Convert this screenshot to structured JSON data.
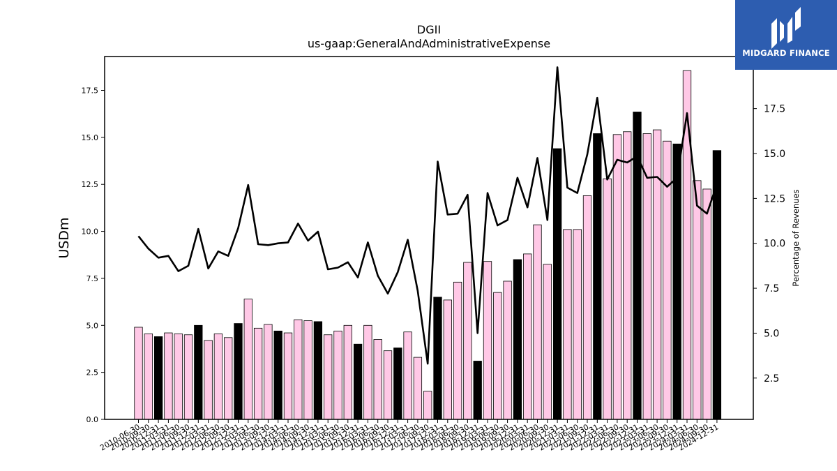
{
  "chart_data": {
    "type": "bar",
    "title": "DGII",
    "subtitle": "us-gaap:GeneralAndAdministrativeExpense",
    "ylabel": "USDm",
    "y2label": "Percentage of Revenues",
    "ylim": [
      0,
      19.3
    ],
    "y2lim": [
      0.2,
      20.4
    ],
    "yticks": [
      "0.0",
      "2.5",
      "5.0",
      "7.5",
      "10.0",
      "12.5",
      "15.0",
      "17.5"
    ],
    "y2ticks": [
      "2.5",
      "5.0",
      "7.5",
      "10.0",
      "12.5",
      "15.0",
      "17.5"
    ],
    "grid": false,
    "categories": [
      "2010-06-30",
      "2010-09-30",
      "2010-12-31",
      "2011-03-31",
      "2011-06-30",
      "2011-09-30",
      "2011-12-31",
      "2012-03-31",
      "2012-06-30",
      "2012-09-30",
      "2012-12-31",
      "2013-03-31",
      "2013-06-30",
      "2013-09-30",
      "2013-12-31",
      "2014-03-31",
      "2014-06-30",
      "2014-09-30",
      "2014-12-31",
      "2015-03-31",
      "2015-06-30",
      "2015-09-30",
      "2015-12-31",
      "2016-03-31",
      "2016-06-30",
      "2016-09-30",
      "2016-12-31",
      "2017-03-31",
      "2017-06-30",
      "2017-09-30",
      "2017-12-31",
      "2018-03-31",
      "2018-06-30",
      "2018-09-30",
      "2018-12-31",
      "2019-03-31",
      "2019-06-30",
      "2019-09-30",
      "2019-12-31",
      "2020-03-31",
      "2020-06-30",
      "2020-09-30",
      "2020-12-31",
      "2021-03-31",
      "2021-06-30",
      "2021-09-30",
      "2021-12-31",
      "2022-03-31",
      "2022-06-30",
      "2022-09-30",
      "2022-12-31",
      "2023-03-31",
      "2023-06-30",
      "2023-09-30",
      "2023-12-31",
      "2024-03-31",
      "2024-06-30",
      "2024-09-30",
      "2024-12-31"
    ],
    "series": [
      {
        "kind": "bar",
        "values": [
          4.9,
          4.55,
          4.4,
          4.6,
          4.55,
          4.5,
          5.0,
          4.2,
          4.55,
          4.35,
          5.1,
          6.4,
          4.85,
          5.05,
          4.7,
          4.6,
          5.3,
          5.25,
          5.2,
          4.5,
          4.7,
          5.0,
          4.0,
          5.0,
          4.25,
          3.65,
          3.8,
          4.65,
          3.3,
          1.5,
          6.5,
          6.35,
          7.3,
          8.35,
          3.1,
          8.4,
          6.75,
          7.35,
          8.5,
          8.8,
          10.35,
          8.25,
          14.4,
          10.1,
          10.1,
          11.9,
          15.2,
          12.8,
          15.15,
          15.3,
          16.35,
          15.2,
          15.4,
          14.8,
          14.65,
          18.55,
          12.7,
          12.25,
          14.3
        ],
        "colors": [
          "#ffc8e6",
          "#ffc8e6",
          "#000000",
          "#ffc8e6",
          "#ffc8e6",
          "#ffc8e6",
          "#000000",
          "#ffc8e6",
          "#ffc8e6",
          "#ffc8e6",
          "#000000",
          "#ffc8e6",
          "#ffc8e6",
          "#ffc8e6",
          "#000000",
          "#ffc8e6",
          "#ffc8e6",
          "#ffc8e6",
          "#000000",
          "#ffc8e6",
          "#ffc8e6",
          "#ffc8e6",
          "#000000",
          "#ffc8e6",
          "#ffc8e6",
          "#ffc8e6",
          "#000000",
          "#ffc8e6",
          "#ffc8e6",
          "#ffc8e6",
          "#000000",
          "#ffc8e6",
          "#ffc8e6",
          "#ffc8e6",
          "#000000",
          "#ffc8e6",
          "#ffc8e6",
          "#ffc8e6",
          "#000000",
          "#ffc8e6",
          "#ffc8e6",
          "#ffc8e6",
          "#000000",
          "#ffc8e6",
          "#ffc8e6",
          "#ffc8e6",
          "#000000",
          "#ffc8e6",
          "#ffc8e6",
          "#ffc8e6",
          "#000000",
          "#ffc8e6",
          "#ffc8e6",
          "#ffc8e6",
          "#000000",
          "#ffc8e6",
          "#ffc8e6",
          "#ffc8e6",
          "#000000"
        ]
      },
      {
        "kind": "line",
        "axis": "right",
        "color": "#000000",
        "values": [
          10.4,
          9.7,
          9.2,
          9.3,
          8.45,
          8.75,
          10.8,
          8.6,
          9.55,
          9.3,
          10.85,
          13.25,
          9.95,
          9.9,
          10.0,
          10.05,
          11.1,
          10.15,
          10.65,
          8.55,
          8.65,
          8.95,
          8.1,
          10.05,
          8.2,
          7.2,
          8.4,
          10.2,
          7.35,
          3.3,
          14.55,
          11.6,
          11.65,
          12.7,
          5.0,
          12.8,
          11.0,
          11.3,
          13.65,
          12.0,
          14.75,
          11.3,
          19.8,
          13.1,
          12.8,
          14.95,
          18.1,
          13.55,
          14.65,
          14.5,
          14.85,
          13.65,
          13.7,
          13.15,
          13.65,
          17.25,
          12.1,
          11.65,
          13.3
        ]
      }
    ]
  },
  "logo": {
    "text": "MIDGARD FINANCE",
    "bg": "#2d5db0"
  }
}
